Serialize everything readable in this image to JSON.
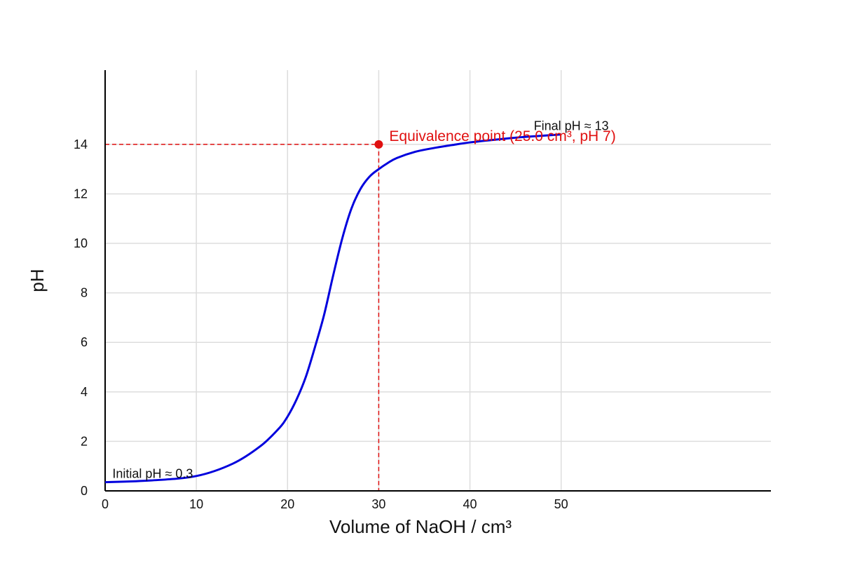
{
  "chart_data": {
    "type": "line",
    "title": "",
    "xlabel": "Volume of NaOH / cm³",
    "ylabel": "pH",
    "xlim": [
      0,
      73
    ],
    "ylim": [
      0,
      17
    ],
    "x_ticks": [
      0,
      10,
      20,
      30,
      40,
      50
    ],
    "y_ticks": [
      0,
      2,
      4,
      6,
      8,
      10,
      12,
      14
    ],
    "grid": true,
    "series": [
      {
        "color": "#0000dd",
        "x": [
          0,
          5,
          10,
          14,
          17,
          19,
          20,
          21,
          22,
          23,
          24,
          25,
          26,
          27,
          28,
          29,
          30,
          31,
          32,
          34,
          36,
          38,
          40,
          43,
          46,
          50
        ],
        "y": [
          0.35,
          0.42,
          0.6,
          1.1,
          1.8,
          2.5,
          3.0,
          3.7,
          4.6,
          5.8,
          7.1,
          8.7,
          10.2,
          11.4,
          12.2,
          12.7,
          13.0,
          13.25,
          13.45,
          13.7,
          13.85,
          13.97,
          14.08,
          14.2,
          14.3,
          14.4
        ]
      }
    ],
    "equivalence_point": {
      "x": 30,
      "y": 14,
      "color": "#e01010",
      "label": "Equivalence point (25.0 cm³, pH 7)"
    },
    "annotations": {
      "initial": {
        "text": "Initial pH ≈ 0.3",
        "x": 0.8,
        "y": 0.3
      },
      "final": {
        "text": "Final pH ≈ 13",
        "x": 47,
        "y": 14.3
      }
    }
  }
}
